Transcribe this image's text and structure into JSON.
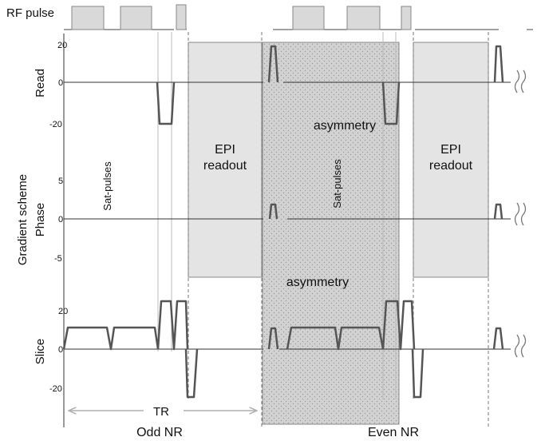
{
  "rf": {
    "label": "RF pulse"
  },
  "axes": {
    "read": {
      "label": "Read",
      "ticks": [
        "20",
        "0",
        "-20"
      ]
    },
    "phase": {
      "label": "Phase",
      "ticks": [
        "5",
        "0",
        "-5"
      ]
    },
    "slice": {
      "label": "Slice",
      "ticks": [
        "20",
        "0",
        "-20"
      ]
    },
    "group_label": "Gradient scheme"
  },
  "annotations": {
    "sat_pulses_odd": "Sat-pulses",
    "sat_pulses_even": "Sat-pulses",
    "epi_odd_line1": "EPI",
    "epi_odd_line2": "readout",
    "epi_even_line1": "EPI",
    "epi_even_line2": "readout",
    "asymmetry_read": "asymmetry",
    "asymmetry_phase": "asymmetry",
    "tr": "TR"
  },
  "footer": {
    "odd": "Odd NR",
    "even": "Even NR"
  },
  "colors": {
    "trace": "#555555",
    "box_fill": "#e4e4e4",
    "box_stroke": "#888888",
    "dotted_fill": "#d2d2d2",
    "dot": "#9a9a9a",
    "axis": "#333333",
    "arrow": "#bbbbbb",
    "guide": "#cccccc"
  }
}
